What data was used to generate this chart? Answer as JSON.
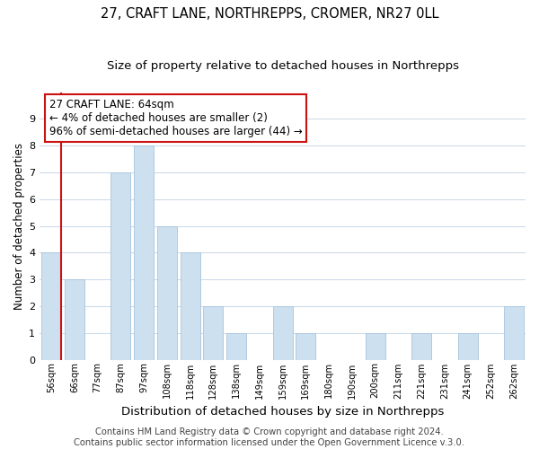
{
  "title": "27, CRAFT LANE, NORTHREPPS, CROMER, NR27 0LL",
  "subtitle": "Size of property relative to detached houses in Northrepps",
  "xlabel": "Distribution of detached houses by size in Northrepps",
  "ylabel": "Number of detached properties",
  "bin_labels": [
    "56sqm",
    "66sqm",
    "77sqm",
    "87sqm",
    "97sqm",
    "108sqm",
    "118sqm",
    "128sqm",
    "138sqm",
    "149sqm",
    "159sqm",
    "169sqm",
    "180sqm",
    "190sqm",
    "200sqm",
    "211sqm",
    "221sqm",
    "231sqm",
    "241sqm",
    "252sqm",
    "262sqm"
  ],
  "bar_heights": [
    4,
    3,
    0,
    7,
    8,
    5,
    4,
    2,
    1,
    0,
    2,
    1,
    0,
    0,
    1,
    0,
    1,
    0,
    1,
    0,
    2
  ],
  "bar_color": "#cde0f0",
  "bar_edge_color": "#a8c4dc",
  "highlight_edge_color": "#cc1111",
  "ylim": [
    0,
    10
  ],
  "yticks": [
    0,
    1,
    2,
    3,
    4,
    5,
    6,
    7,
    8,
    9,
    10
  ],
  "annotation_text": "27 CRAFT LANE: 64sqm\n← 4% of detached houses are smaller (2)\n96% of semi-detached houses are larger (44) →",
  "annotation_box_color": "#ffffff",
  "annotation_box_edge": "#cc1111",
  "footer_text": "Contains HM Land Registry data © Crown copyright and database right 2024.\nContains public sector information licensed under the Open Government Licence v.3.0.",
  "background_color": "#ffffff",
  "grid_color": "#c8d8e8",
  "title_fontsize": 10.5,
  "subtitle_fontsize": 9.5,
  "xlabel_fontsize": 9.5,
  "ylabel_fontsize": 8.5,
  "footer_fontsize": 7.2,
  "ann_fontsize": 8.5
}
